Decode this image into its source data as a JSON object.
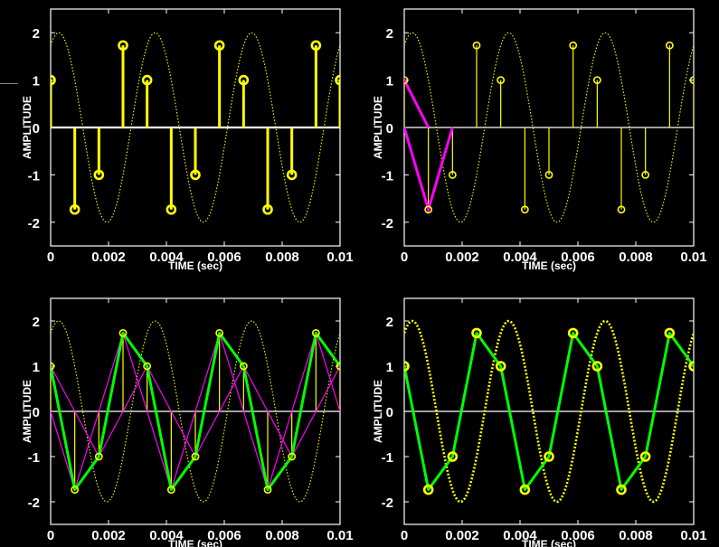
{
  "slide": {
    "title_fragment": ""
  },
  "colors": {
    "background": "#000000",
    "axes": "#ffffff",
    "sinusoid": "#ffff00",
    "samples": "#ffff00",
    "interp_basis": "#ff00ff",
    "interp_result": "#00ff00"
  },
  "chart_data": [
    {
      "type": "line",
      "panel": "top-left",
      "xlabel": "TIME (sec)",
      "ylabel": "AMPLITUDE",
      "xlim": [
        0,
        0.01
      ],
      "ylim": [
        -2.5,
        2.5
      ],
      "xticks": [
        0,
        0.002,
        0.004,
        0.006,
        0.008,
        0.01
      ],
      "xtick_labels": [
        "0",
        "0.002",
        "0.004",
        "0.006",
        "0.008",
        "0.01"
      ],
      "yticks": [
        -2,
        -1,
        0,
        1,
        2
      ],
      "ytick_labels": [
        "-2",
        "-1",
        "0",
        "1",
        "2"
      ],
      "grid": false,
      "series": [
        {
          "kind": "continuous",
          "amplitude": 2,
          "frequency_hz": 300,
          "phase_rad": 0.5236,
          "style": "dotted"
        },
        {
          "kind": "stem",
          "sample_period_s": 0.000833,
          "x": [
            0,
            0.000833,
            0.001667,
            0.0025,
            0.003333,
            0.004167,
            0.005,
            0.005833,
            0.006667,
            0.0075,
            0.008333,
            0.009167,
            0.01
          ],
          "y": [
            1,
            -1.732,
            -1,
            1.732,
            1,
            -1.732,
            -1,
            1.732,
            1,
            -1.732,
            -1,
            1.732,
            1
          ],
          "style": "thick"
        }
      ]
    },
    {
      "type": "line",
      "panel": "top-right",
      "xlabel": "TIME (sec)",
      "ylabel": "AMPLITUDE",
      "xlim": [
        0,
        0.01
      ],
      "ylim": [
        -2.5,
        2.5
      ],
      "xticks": [
        0,
        0.002,
        0.004,
        0.006,
        0.008,
        0.01
      ],
      "xtick_labels": [
        "0",
        "0.002",
        "0.004",
        "0.006",
        "0.008",
        "0.01"
      ],
      "yticks": [
        -2,
        -1,
        0,
        1,
        2
      ],
      "ytick_labels": [
        "-2",
        "-1",
        "0",
        "1",
        "2"
      ],
      "grid": false,
      "series": [
        {
          "kind": "continuous",
          "amplitude": 2,
          "frequency_hz": 300,
          "phase_rad": 0.5236,
          "style": "dotted"
        },
        {
          "kind": "stem",
          "x": [
            0,
            0.000833,
            0.001667,
            0.0025,
            0.003333,
            0.004167,
            0.005,
            0.005833,
            0.006667,
            0.0075,
            0.008333,
            0.009167,
            0.01
          ],
          "y": [
            1,
            -1.732,
            -1,
            1.732,
            1,
            -1.732,
            -1,
            1.732,
            1,
            -1.732,
            -1,
            1.732,
            1
          ],
          "style": "thin"
        },
        {
          "kind": "triangle_pulse",
          "center": 0,
          "height": 1,
          "half_width_s": 0.000833,
          "style": "thick"
        },
        {
          "kind": "triangle_pulse",
          "center": 0.000833,
          "height": -1.732,
          "half_width_s": 0.000833,
          "style": "thick"
        }
      ]
    },
    {
      "type": "line",
      "panel": "bottom-left",
      "xlabel": "TIME (sec)",
      "ylabel": "AMPLITUDE",
      "xlim": [
        0,
        0.01
      ],
      "ylim": [
        -2.5,
        2.5
      ],
      "xticks": [
        0,
        0.002,
        0.004,
        0.006,
        0.008,
        0.01
      ],
      "xtick_labels": [
        "0",
        "0.002",
        "0.004",
        "0.006",
        "0.008",
        "0.01"
      ],
      "yticks": [
        -2,
        -1,
        0,
        1,
        2
      ],
      "ytick_labels": [
        "-2",
        "-1",
        "0",
        "1",
        "2"
      ],
      "grid": false,
      "series": [
        {
          "kind": "continuous",
          "amplitude": 2,
          "frequency_hz": 300,
          "phase_rad": 0.5236,
          "style": "dotted"
        },
        {
          "kind": "stem",
          "x": [
            0,
            0.000833,
            0.001667,
            0.0025,
            0.003333,
            0.004167,
            0.005,
            0.005833,
            0.006667,
            0.0075,
            0.008333,
            0.009167,
            0.01
          ],
          "y": [
            1,
            -1.732,
            -1,
            1.732,
            1,
            -1.732,
            -1,
            1.732,
            1,
            -1.732,
            -1,
            1.732,
            1
          ],
          "style": "thin"
        },
        {
          "kind": "triangle_pulses_all",
          "half_width_s": 0.000833
        },
        {
          "kind": "linear_interp",
          "x": [
            0,
            0.000833,
            0.001667,
            0.0025,
            0.003333,
            0.004167,
            0.005,
            0.005833,
            0.006667,
            0.0075,
            0.008333,
            0.009167,
            0.01
          ],
          "y": [
            1,
            -1.732,
            -1,
            1.732,
            1,
            -1.732,
            -1,
            1.732,
            1,
            -1.732,
            -1,
            1.732,
            1
          ]
        }
      ]
    },
    {
      "type": "line",
      "panel": "bottom-right",
      "xlabel": "TIME (sec)",
      "ylabel": "AMPLITUDE",
      "xlim": [
        0,
        0.01
      ],
      "ylim": [
        -2.5,
        2.5
      ],
      "xticks": [
        0,
        0.002,
        0.004,
        0.006,
        0.008,
        0.01
      ],
      "xtick_labels": [
        "0",
        "0.002",
        "0.004",
        "0.006",
        "0.008",
        "0.01"
      ],
      "yticks": [
        -2,
        -1,
        0,
        1,
        2
      ],
      "ytick_labels": [
        "-2",
        "-1",
        "0",
        "1",
        "2"
      ],
      "grid": false,
      "series": [
        {
          "kind": "continuous",
          "amplitude": 2,
          "frequency_hz": 300,
          "phase_rad": 0.5236,
          "style": "thick-dotted"
        },
        {
          "kind": "linear_interp",
          "x": [
            0,
            0.000833,
            0.001667,
            0.0025,
            0.003333,
            0.004167,
            0.005,
            0.005833,
            0.006667,
            0.0075,
            0.008333,
            0.009167,
            0.01
          ],
          "y": [
            1,
            -1.732,
            -1,
            1.732,
            1,
            -1.732,
            -1,
            1.732,
            1,
            -1.732,
            -1,
            1.732,
            1
          ]
        }
      ]
    }
  ]
}
